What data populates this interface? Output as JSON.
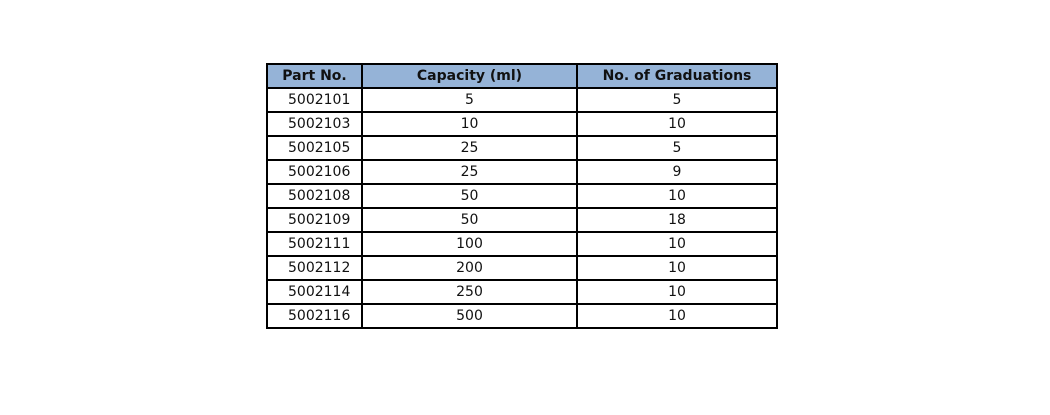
{
  "table": {
    "headers": [
      "Part No.",
      "Capacity (ml)",
      "No. of Graduations"
    ],
    "rows": [
      [
        "5002101",
        "5",
        "5"
      ],
      [
        "5002103",
        "10",
        "10"
      ],
      [
        "5002105",
        "25",
        "5"
      ],
      [
        "5002106",
        "25",
        "9"
      ],
      [
        "5002108",
        "50",
        "10"
      ],
      [
        "5002109",
        "50",
        "18"
      ],
      [
        "5002111",
        "100",
        "10"
      ],
      [
        "5002112",
        "200",
        "10"
      ],
      [
        "5002114",
        "250",
        "10"
      ],
      [
        "5002116",
        "500",
        "10"
      ]
    ]
  },
  "colors": {
    "header_background": "#95b3d7",
    "border": "#000000"
  }
}
